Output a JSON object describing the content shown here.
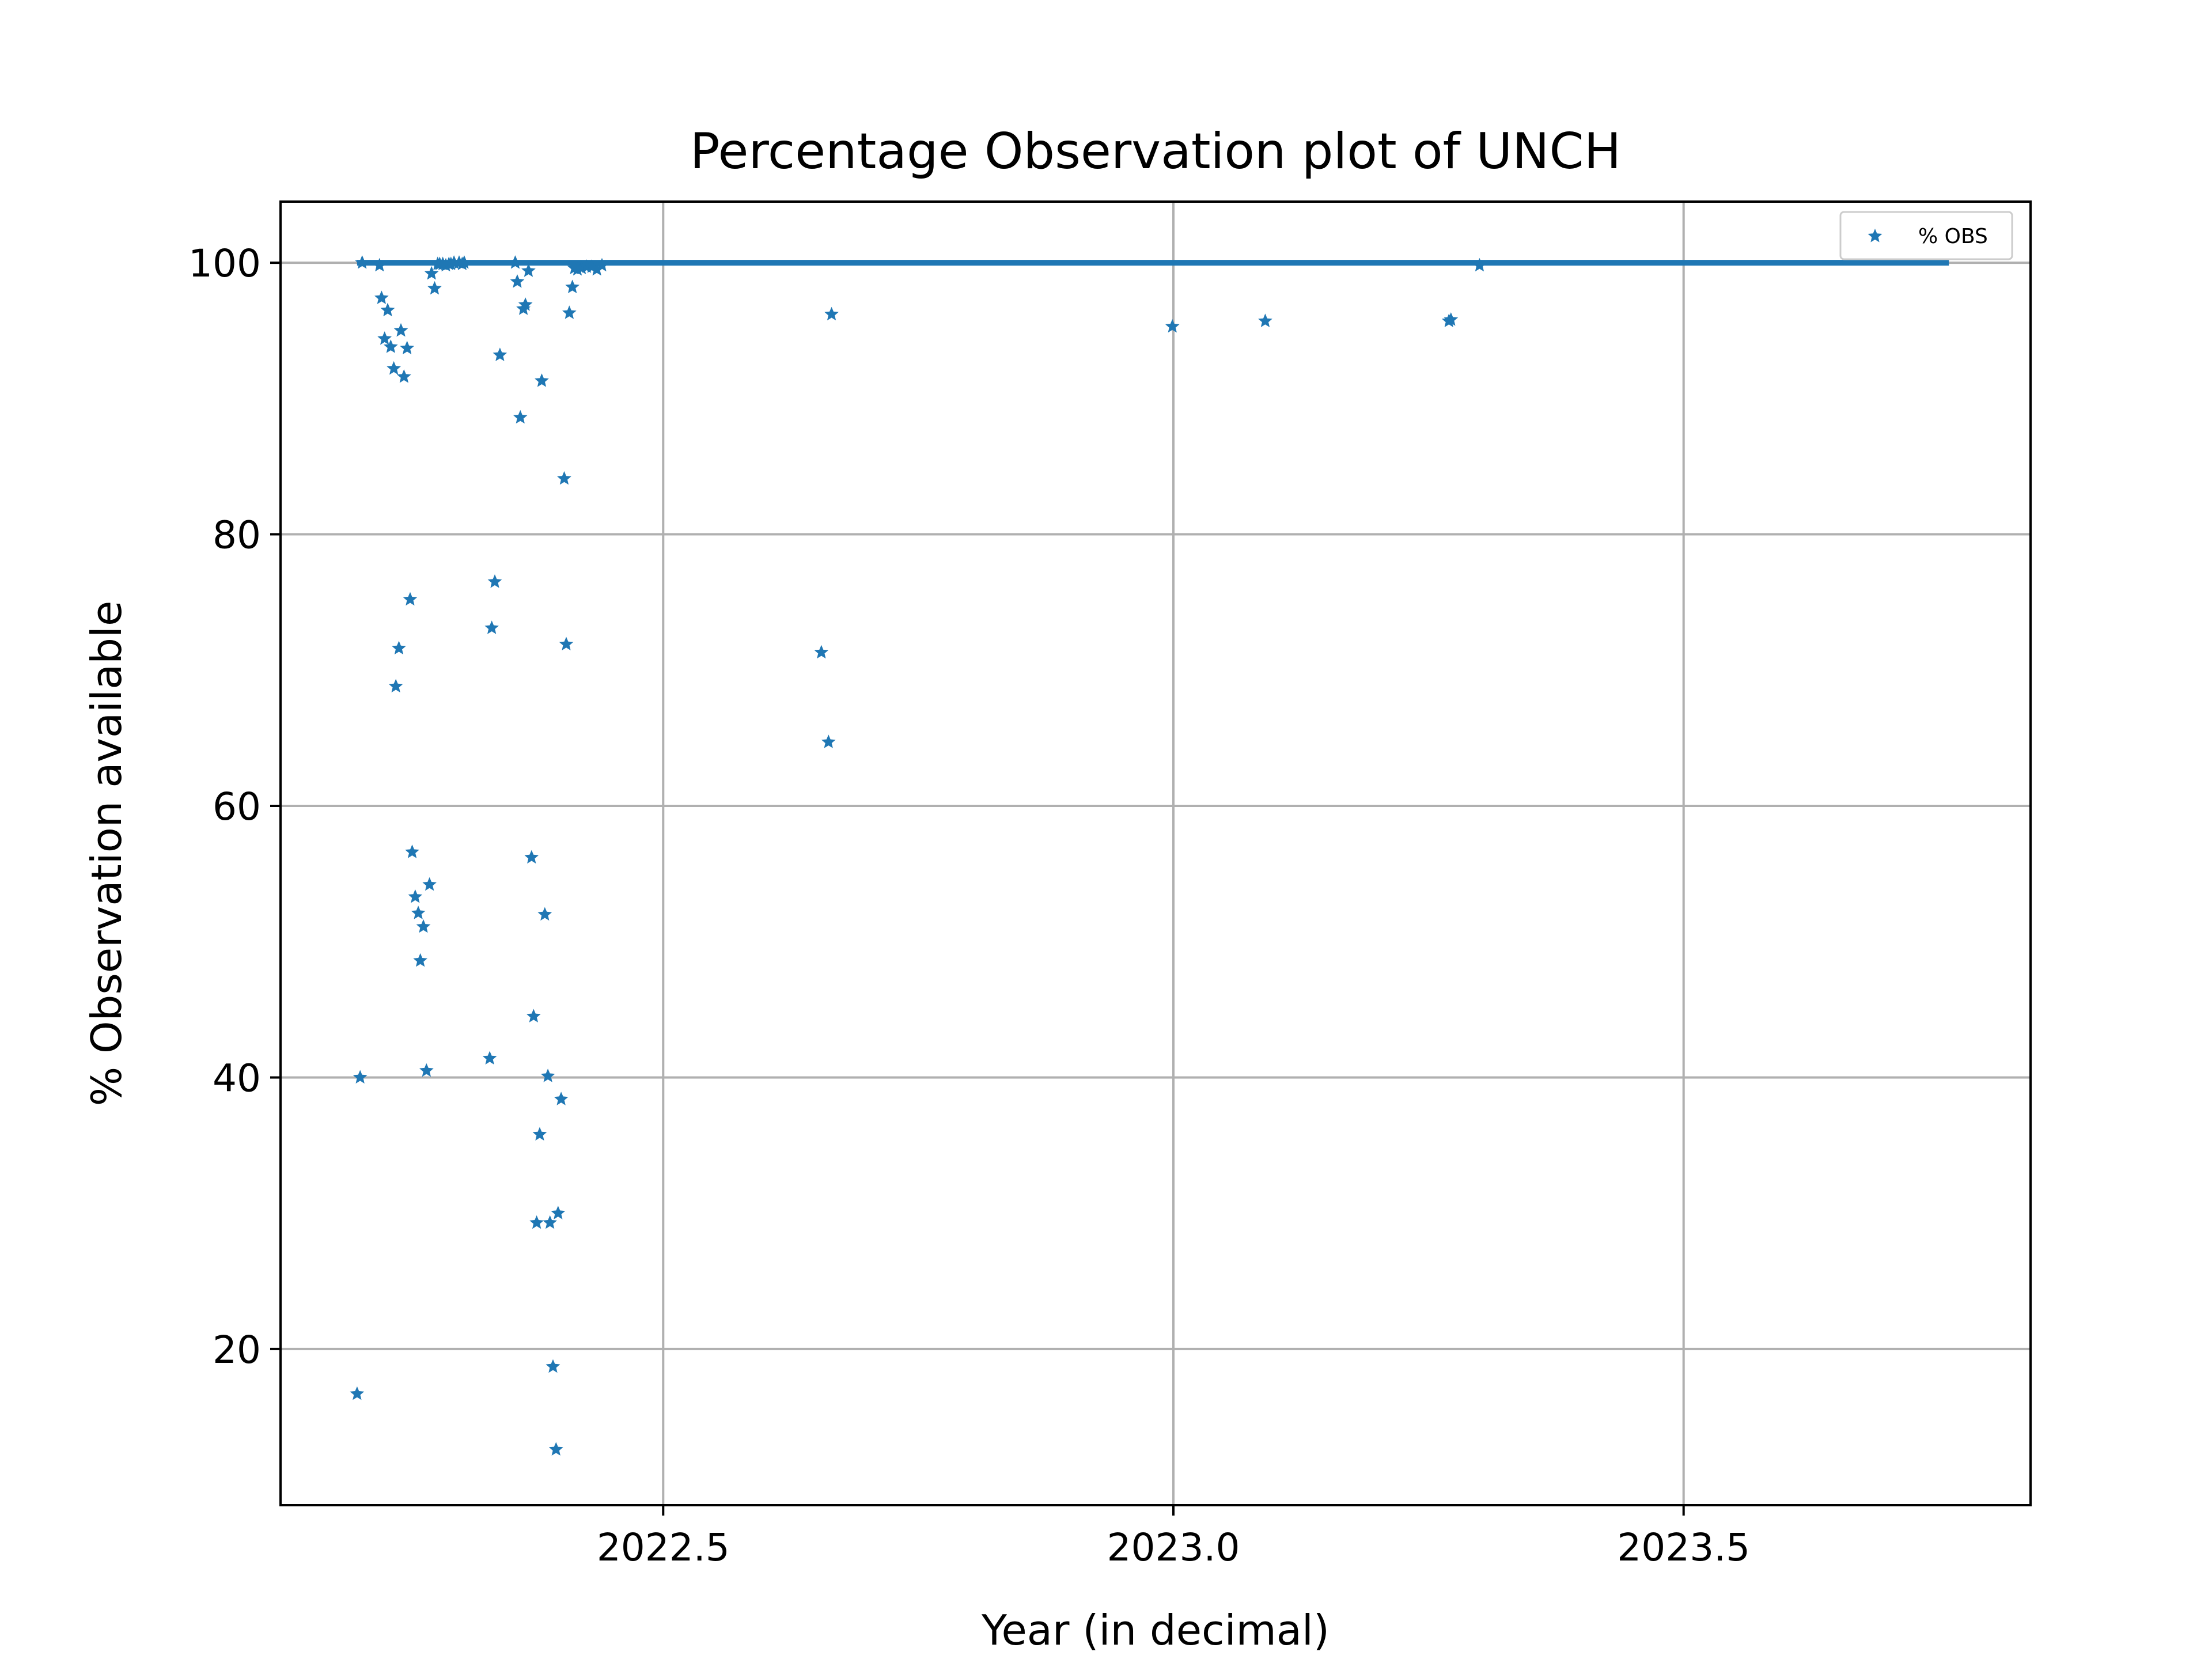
{
  "chart_data": {
    "type": "scatter",
    "title": "Percentage Observation plot of UNCH",
    "xlabel": "Year (in decimal)",
    "ylabel": "% Observation available",
    "xlim": [
      2022.125,
      2023.84
    ],
    "ylim": [
      8.5,
      104.5
    ],
    "xticks": [
      2022.5,
      2023.0,
      2023.5
    ],
    "xtick_labels": [
      "2022.5",
      "2023.0",
      "2023.5"
    ],
    "yticks": [
      20,
      40,
      60,
      80,
      100
    ],
    "ytick_labels": [
      "20",
      "40",
      "60",
      "80",
      "100"
    ],
    "grid": true,
    "legend": {
      "placement": "top-right",
      "entries": [
        "% OBS"
      ]
    },
    "colors": {
      "series": "#1f77b4",
      "grid": "#b0b0b0"
    },
    "marker": "star",
    "series": [
      {
        "name": "% OBS",
        "baseline": {
          "x_start": 2022.2,
          "x_end": 2023.76,
          "value": 100
        },
        "x": [
          2022.2,
          2022.203,
          2022.205,
          2022.222,
          2022.224,
          2022.227,
          2022.23,
          2022.233,
          2022.236,
          2022.238,
          2022.241,
          2022.243,
          2022.246,
          2022.249,
          2022.252,
          2022.254,
          2022.257,
          2022.26,
          2022.262,
          2022.265,
          2022.268,
          2022.271,
          2022.273,
          2022.276,
          2022.279,
          2022.281,
          2022.284,
          2022.287,
          2022.29,
          2022.292,
          2022.295,
          2022.3,
          2022.303,
          2022.305,
          2022.33,
          2022.332,
          2022.335,
          2022.34,
          2022.355,
          2022.357,
          2022.36,
          2022.363,
          2022.365,
          2022.368,
          2022.371,
          2022.373,
          2022.376,
          2022.379,
          2022.381,
          2022.384,
          2022.387,
          2022.389,
          2022.392,
          2022.395,
          2022.397,
          2022.4,
          2022.403,
          2022.405,
          2022.408,
          2022.411,
          2022.413,
          2022.416,
          2022.42,
          2022.425,
          2022.43,
          2022.435,
          2022.44,
          2022.655,
          2022.662,
          2022.665,
          2022.999,
          2023.09,
          2023.27,
          2023.272,
          2023.3
        ],
        "y": [
          16.7,
          40.0,
          100.0,
          99.8,
          97.4,
          94.4,
          96.5,
          93.8,
          92.2,
          68.8,
          71.6,
          95.0,
          91.6,
          93.7,
          75.2,
          56.6,
          53.3,
          52.1,
          48.6,
          51.1,
          40.5,
          54.2,
          99.2,
          98.1,
          99.9,
          99.9,
          99.9,
          99.8,
          99.9,
          99.9,
          100.0,
          100.0,
          99.9,
          100.0,
          41.4,
          73.1,
          76.5,
          93.2,
          100.0,
          98.6,
          88.6,
          96.6,
          96.9,
          99.4,
          56.2,
          44.5,
          29.3,
          35.8,
          91.3,
          52.0,
          40.1,
          29.3,
          18.7,
          12.6,
          30.0,
          38.4,
          84.1,
          71.9,
          96.3,
          98.2,
          99.6,
          99.5,
          99.6,
          99.7,
          99.7,
          99.5,
          99.8,
          71.3,
          64.7,
          96.2,
          95.3,
          95.7,
          95.7,
          95.8,
          99.8
        ]
      }
    ]
  }
}
